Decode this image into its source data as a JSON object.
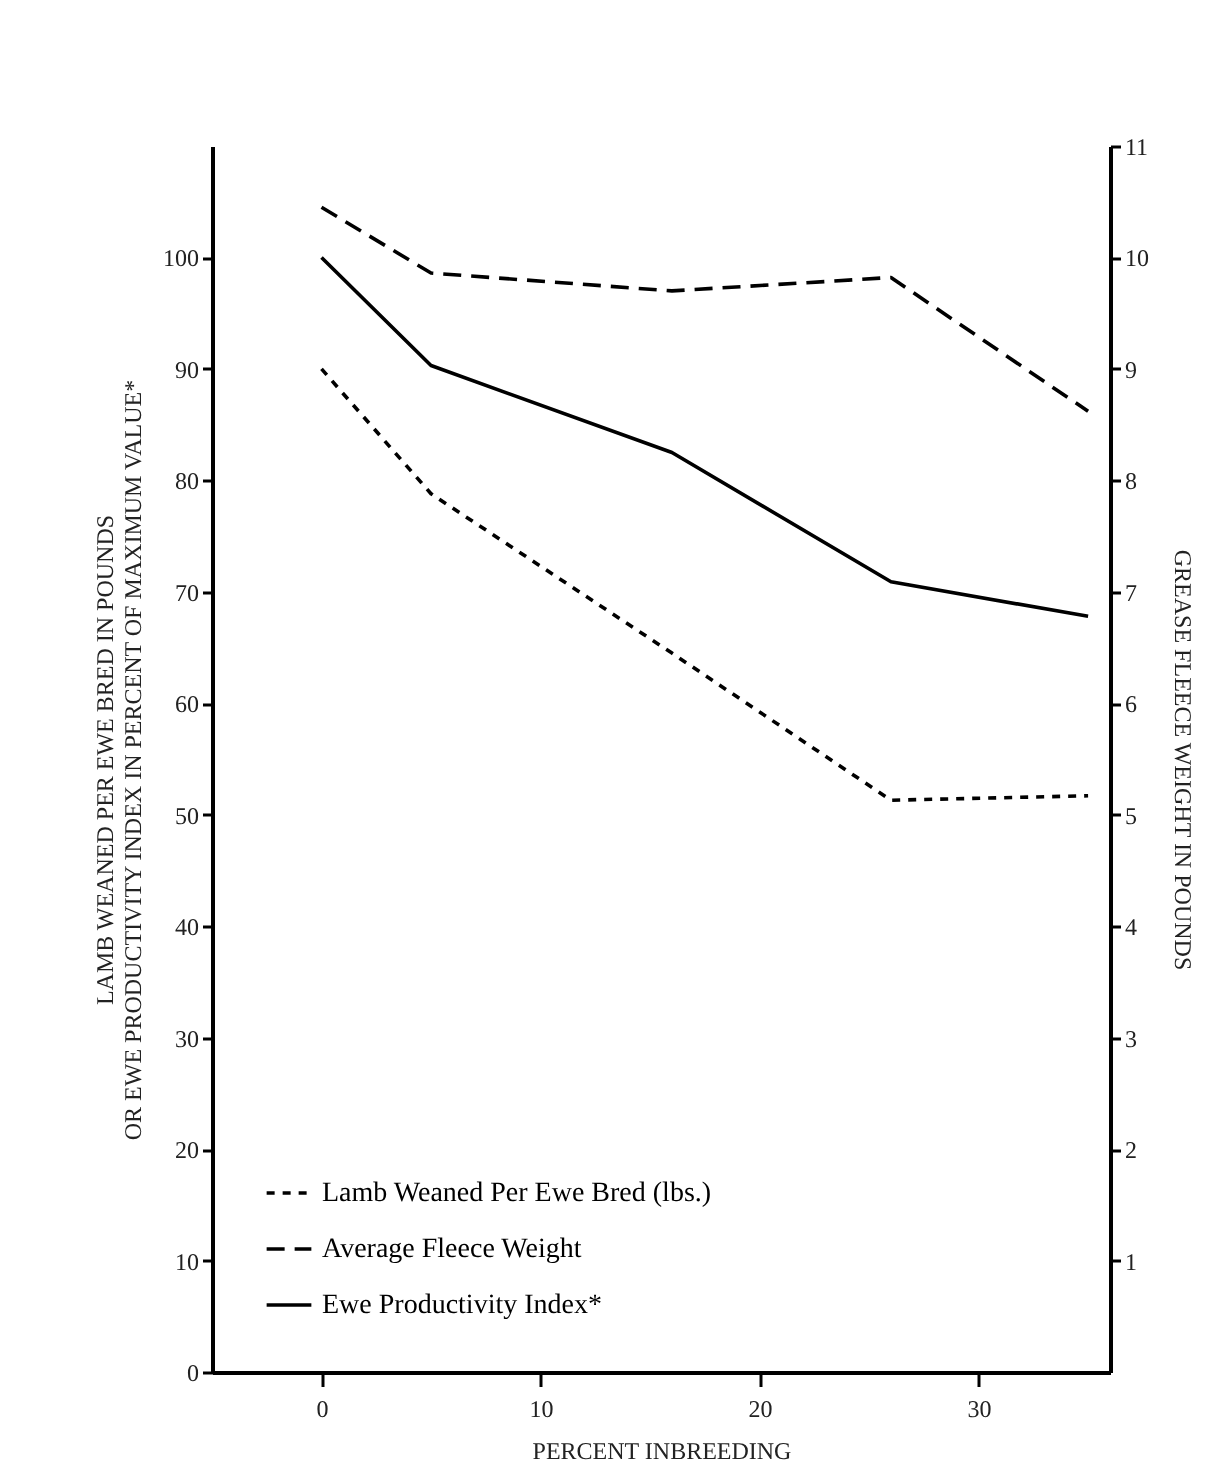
{
  "chart_data": {
    "type": "line",
    "xlabel": "PERCENT INBREEDING",
    "ylabel": "LAMB WEANED PER EWE BRED IN POUNDS\nOR EWE PRODUCTIVITY INDEX IN PERCENT OF MAXIMUM VALUE*",
    "y2label": "GREASE FLEECE WEIGHT IN POUNDS",
    "x": [
      0,
      5,
      16,
      26,
      35
    ],
    "series": [
      {
        "name": "Lamb Weaned Per Ewe Bred (lbs.)",
        "color": "#000000",
        "line_style": "dashed",
        "values": [
          90,
          78.8,
          64.5,
          51.3,
          51.7
        ]
      },
      {
        "name": "Average Fleece Weight",
        "color": "#000000",
        "line_style": "dashed",
        "axis": "y2",
        "values": [
          10.45,
          9.86,
          9.7,
          9.82,
          8.62
        ]
      },
      {
        "name": "Ewe Productivity Index*",
        "color": "#000000",
        "line_style": "solid",
        "values": [
          100,
          90.3,
          82.5,
          70.9,
          67.8
        ]
      }
    ],
    "xlim": [
      -5,
      36
    ],
    "xticks": [
      0,
      10,
      20,
      30
    ],
    "ylim": [
      0,
      110
    ],
    "yticks": [
      0,
      10,
      20,
      30,
      40,
      50,
      60,
      70,
      80,
      90,
      100
    ],
    "y2lim": [
      0,
      11
    ],
    "y2ticks": [
      1,
      2,
      3,
      4,
      5,
      6,
      7,
      8,
      9,
      10,
      11
    ],
    "grid": false,
    "legend": "bottom left",
    "marker": "none"
  }
}
